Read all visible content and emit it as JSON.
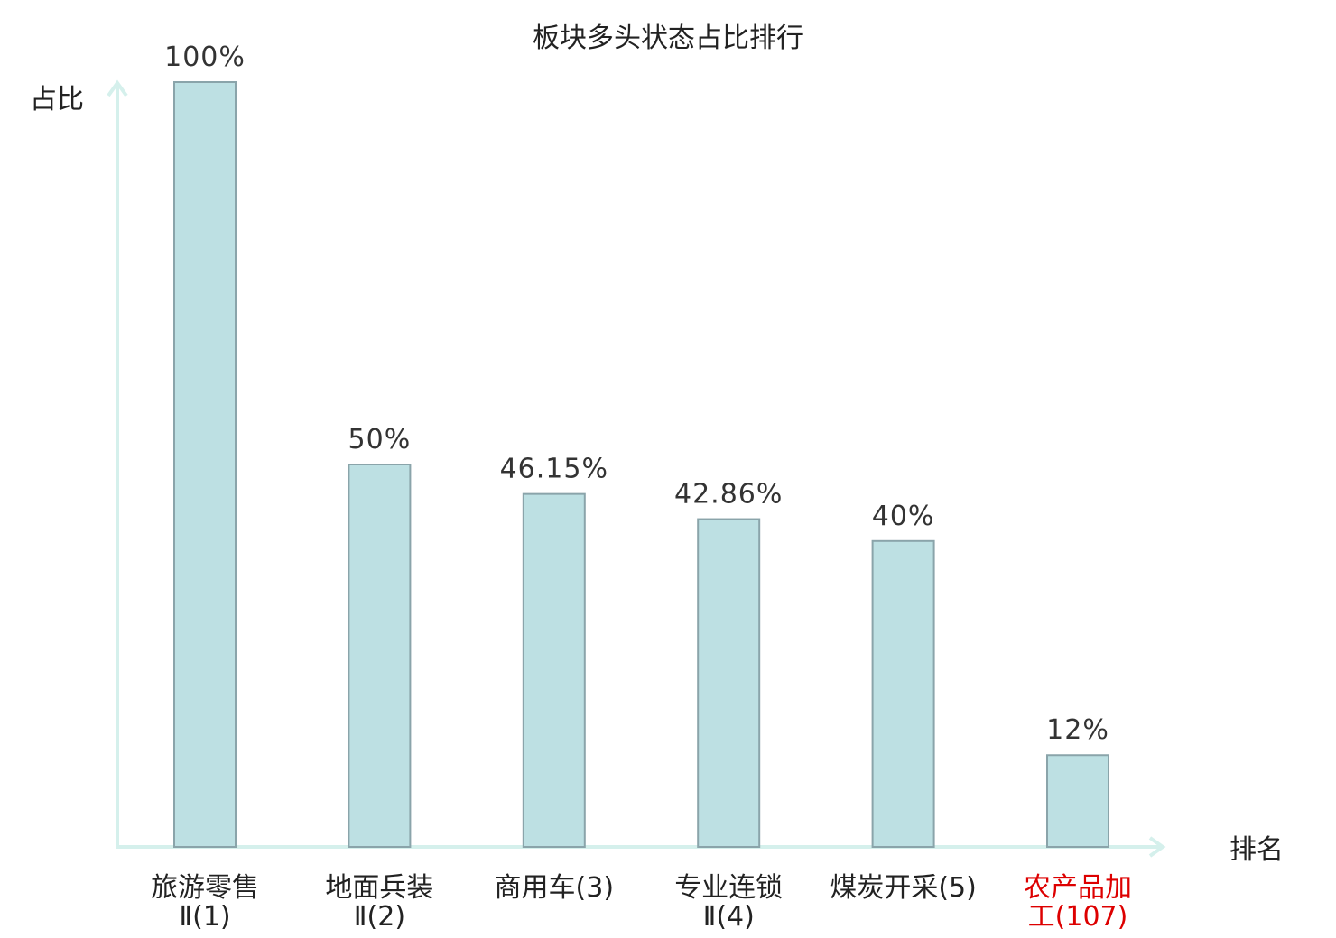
{
  "chart_data": {
    "type": "bar",
    "title": "板块多头状态占比排行",
    "ylabel": "占比",
    "xlabel": "排名",
    "categories": [
      [
        "旅游零售",
        "Ⅱ(1)"
      ],
      [
        "地面兵装",
        "Ⅱ(2)"
      ],
      [
        "商用车(3)"
      ],
      [
        "专业连锁",
        "Ⅱ(4)"
      ],
      [
        "煤炭开采(5)"
      ],
      [
        "农产品加",
        "工(107)"
      ]
    ],
    "values": [
      100,
      50,
      46.15,
      42.86,
      40,
      12
    ],
    "value_labels": [
      "100%",
      "50%",
      "46.15%",
      "42.86%",
      "40%",
      "12%"
    ],
    "highlight_index": 5,
    "ylim": [
      0,
      100
    ],
    "grid": false,
    "colors": {
      "bar_fill": "#bde0e3",
      "bar_stroke": "#8aa4aa",
      "axis": "#d5f0ec",
      "highlight_label": "#dd0000",
      "label": "#222222"
    }
  }
}
